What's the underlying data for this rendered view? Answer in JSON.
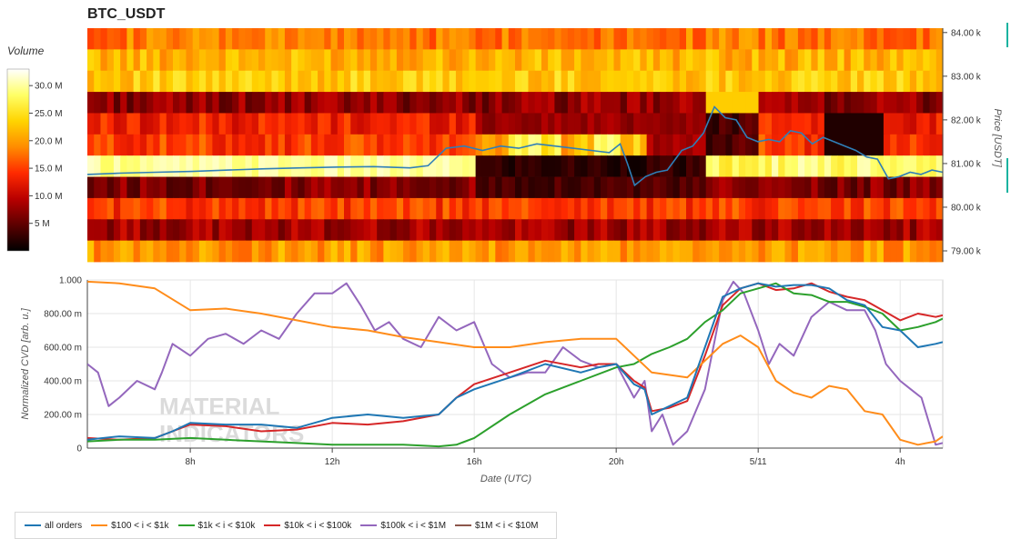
{
  "title": "BTC_USDT",
  "watermark": [
    "MATERIAL",
    "INDICATORS"
  ],
  "chart_data": [
    {
      "type": "heatmap",
      "title": "BTC_USDT",
      "colorbar": {
        "title": "Volume",
        "ticks": [
          "5 M",
          "10.0 M",
          "15.0 M",
          "20.0 M",
          "25.0 M",
          "30.0 M"
        ],
        "tick_values": [
          5,
          10,
          15,
          20,
          25,
          30
        ],
        "range": [
          0,
          33
        ],
        "colors": [
          "#000000",
          "#5c0000",
          "#b80000",
          "#ff2a00",
          "#ff8c00",
          "#ffd400",
          "#ffff66",
          "#ffffff"
        ]
      },
      "ylabel": "Price [USDT]",
      "yticks": [
        "84.00 k",
        "83.00 k",
        "82.00 k",
        "81.00 k",
        "80.00 k",
        "79.00 k"
      ],
      "ytick_values": [
        84000,
        83000,
        82000,
        81000,
        80000,
        79000
      ],
      "ylim": [
        78750,
        84100
      ],
      "price_levels": [
        83900,
        83500,
        83000,
        82500,
        82000,
        81500,
        81000,
        80500,
        80000,
        79500,
        79000
      ],
      "x_hours": [
        5.6,
        29.2
      ],
      "price_line": {
        "x": [
          5.6,
          6.5,
          7.5,
          8.5,
          9.5,
          10.5,
          11.5,
          12.5,
          13.5,
          14.5,
          15.0,
          15.5,
          16.0,
          16.5,
          17.0,
          17.5,
          18.0,
          18.5,
          19.0,
          19.5,
          20.0,
          20.3,
          20.5,
          20.7,
          21.0,
          21.3,
          21.6,
          22.0,
          22.3,
          22.6,
          22.9,
          23.2,
          23.5,
          23.8,
          24.1,
          24.4,
          24.7,
          25.0,
          25.3,
          25.6,
          25.9,
          26.2,
          26.5,
          26.8,
          27.1,
          27.4,
          27.7,
          28.0,
          28.3,
          28.6,
          28.9,
          29.2
        ],
        "y": [
          80750,
          80780,
          80800,
          80820,
          80850,
          80880,
          80900,
          80920,
          80930,
          80900,
          80950,
          81350,
          81400,
          81300,
          81400,
          81350,
          81450,
          81400,
          81350,
          81300,
          81250,
          81450,
          81000,
          80500,
          80700,
          80800,
          80850,
          81300,
          81400,
          81700,
          82300,
          82050,
          82000,
          81600,
          81500,
          81550,
          81500,
          81750,
          81700,
          81450,
          81600,
          81500,
          81400,
          81300,
          81150,
          81100,
          80650,
          80700,
          80800,
          80750,
          80850,
          80800
        ]
      }
    },
    {
      "type": "line",
      "xlabel": "Date (UTC)",
      "ylabel": "Normalized CVD [arb. u.]",
      "ylim": [
        0,
        1
      ],
      "xlim": [
        5.1,
        29.2
      ],
      "xticks": [
        "8h",
        "12h",
        "16h",
        "20h",
        "5/11",
        "4h"
      ],
      "xtick_hours": [
        8,
        12,
        16,
        20,
        24,
        28
      ],
      "yticks": [
        "0",
        "200.00 m",
        "400.00 m",
        "600.00 m",
        "800.00 m",
        "1.000"
      ],
      "ytick_values": [
        0,
        0.2,
        0.4,
        0.6,
        0.8,
        1.0
      ],
      "series": [
        {
          "name": "all orders",
          "color": "#1f77b4",
          "x": [
            5.1,
            6.0,
            7.0,
            7.5,
            8.0,
            9.0,
            10.0,
            11.0,
            12.0,
            13.0,
            14.0,
            15.0,
            15.5,
            16.0,
            17.0,
            18.0,
            19.0,
            19.5,
            20.0,
            20.5,
            20.8,
            21.0,
            21.5,
            22.0,
            22.5,
            23.0,
            23.5,
            24.0,
            24.5,
            25.0,
            25.5,
            26.0,
            26.5,
            27.0,
            27.5,
            28.0,
            28.5,
            29.0,
            29.2
          ],
          "y": [
            0.05,
            0.07,
            0.06,
            0.1,
            0.15,
            0.14,
            0.14,
            0.12,
            0.18,
            0.2,
            0.18,
            0.2,
            0.3,
            0.35,
            0.42,
            0.5,
            0.45,
            0.48,
            0.5,
            0.38,
            0.35,
            0.2,
            0.25,
            0.3,
            0.6,
            0.9,
            0.95,
            0.98,
            0.96,
            0.97,
            0.97,
            0.95,
            0.88,
            0.85,
            0.72,
            0.7,
            0.6,
            0.62,
            0.63
          ]
        },
        {
          "name": "$100 < i < $1k",
          "color": "#ff8c1a",
          "x": [
            5.1,
            6.0,
            7.0,
            8.0,
            9.0,
            10.0,
            11.0,
            12.0,
            13.0,
            14.0,
            15.0,
            16.0,
            17.0,
            18.0,
            19.0,
            20.0,
            20.5,
            21.0,
            22.0,
            23.0,
            23.5,
            24.0,
            24.5,
            25.0,
            25.5,
            26.0,
            26.5,
            27.0,
            27.5,
            28.0,
            28.5,
            29.0,
            29.2
          ],
          "y": [
            0.99,
            0.98,
            0.95,
            0.82,
            0.83,
            0.8,
            0.76,
            0.72,
            0.7,
            0.66,
            0.63,
            0.6,
            0.6,
            0.63,
            0.65,
            0.65,
            0.55,
            0.45,
            0.42,
            0.62,
            0.67,
            0.6,
            0.4,
            0.33,
            0.3,
            0.37,
            0.35,
            0.22,
            0.2,
            0.05,
            0.02,
            0.04,
            0.07
          ]
        },
        {
          "name": "$1k < i < $10k",
          "color": "#2ca02c",
          "x": [
            5.1,
            6.0,
            7.0,
            8.0,
            9.0,
            10.0,
            11.0,
            12.0,
            13.0,
            14.0,
            15.0,
            15.5,
            16.0,
            17.0,
            18.0,
            19.0,
            20.0,
            20.5,
            21.0,
            21.5,
            22.0,
            22.5,
            23.0,
            23.5,
            24.0,
            24.5,
            25.0,
            25.5,
            26.0,
            26.5,
            27.0,
            27.5,
            28.0,
            28.5,
            29.0,
            29.2
          ],
          "y": [
            0.04,
            0.05,
            0.05,
            0.06,
            0.05,
            0.04,
            0.03,
            0.02,
            0.02,
            0.02,
            0.01,
            0.02,
            0.06,
            0.2,
            0.32,
            0.4,
            0.48,
            0.5,
            0.56,
            0.6,
            0.65,
            0.75,
            0.82,
            0.92,
            0.95,
            0.98,
            0.92,
            0.91,
            0.87,
            0.87,
            0.84,
            0.8,
            0.7,
            0.72,
            0.75,
            0.77
          ]
        },
        {
          "name": "$10k < i < $100k",
          "color": "#d62728",
          "x": [
            5.1,
            6.0,
            7.0,
            7.5,
            8.0,
            9.0,
            10.0,
            11.0,
            12.0,
            13.0,
            14.0,
            15.0,
            15.5,
            16.0,
            17.0,
            18.0,
            19.0,
            19.5,
            20.0,
            20.5,
            20.8,
            21.0,
            21.5,
            22.0,
            22.5,
            23.0,
            23.5,
            24.0,
            24.5,
            25.0,
            25.5,
            26.0,
            26.5,
            27.0,
            27.5,
            28.0,
            28.5,
            29.0,
            29.2
          ],
          "y": [
            0.06,
            0.05,
            0.06,
            0.1,
            0.14,
            0.13,
            0.1,
            0.11,
            0.15,
            0.14,
            0.16,
            0.2,
            0.3,
            0.38,
            0.45,
            0.52,
            0.48,
            0.5,
            0.5,
            0.4,
            0.36,
            0.22,
            0.24,
            0.28,
            0.55,
            0.85,
            0.95,
            0.98,
            0.94,
            0.95,
            0.98,
            0.93,
            0.9,
            0.88,
            0.82,
            0.76,
            0.8,
            0.78,
            0.79
          ]
        },
        {
          "name": "$100k < i < $1M",
          "color": "#9467bd",
          "x": [
            5.1,
            5.4,
            5.7,
            6.0,
            6.5,
            7.0,
            7.2,
            7.5,
            8.0,
            8.5,
            9.0,
            9.5,
            10.0,
            10.5,
            11.0,
            11.5,
            12.0,
            12.4,
            12.8,
            13.2,
            13.6,
            14.0,
            14.5,
            15.0,
            15.5,
            16.0,
            16.5,
            17.0,
            17.5,
            18.0,
            18.5,
            19.0,
            19.5,
            20.0,
            20.5,
            20.8,
            21.0,
            21.3,
            21.6,
            22.0,
            22.5,
            23.0,
            23.3,
            23.6,
            24.0,
            24.3,
            24.6,
            25.0,
            25.5,
            26.0,
            26.5,
            27.0,
            27.3,
            27.6,
            28.0,
            28.3,
            28.6,
            29.0,
            29.2
          ],
          "y": [
            0.5,
            0.45,
            0.25,
            0.3,
            0.4,
            0.35,
            0.45,
            0.62,
            0.55,
            0.65,
            0.68,
            0.62,
            0.7,
            0.65,
            0.8,
            0.92,
            0.92,
            0.98,
            0.85,
            0.7,
            0.75,
            0.65,
            0.6,
            0.78,
            0.7,
            0.75,
            0.5,
            0.42,
            0.45,
            0.45,
            0.6,
            0.52,
            0.48,
            0.5,
            0.3,
            0.4,
            0.1,
            0.2,
            0.02,
            0.1,
            0.35,
            0.88,
            0.99,
            0.92,
            0.7,
            0.5,
            0.62,
            0.55,
            0.78,
            0.87,
            0.82,
            0.82,
            0.7,
            0.5,
            0.4,
            0.35,
            0.3,
            0.02,
            0.03
          ]
        },
        {
          "name": "$1M < i < $10M",
          "color": "#8c564b",
          "x": [
            5.1,
            29.2
          ],
          "y": [
            null,
            null
          ]
        }
      ]
    }
  ]
}
